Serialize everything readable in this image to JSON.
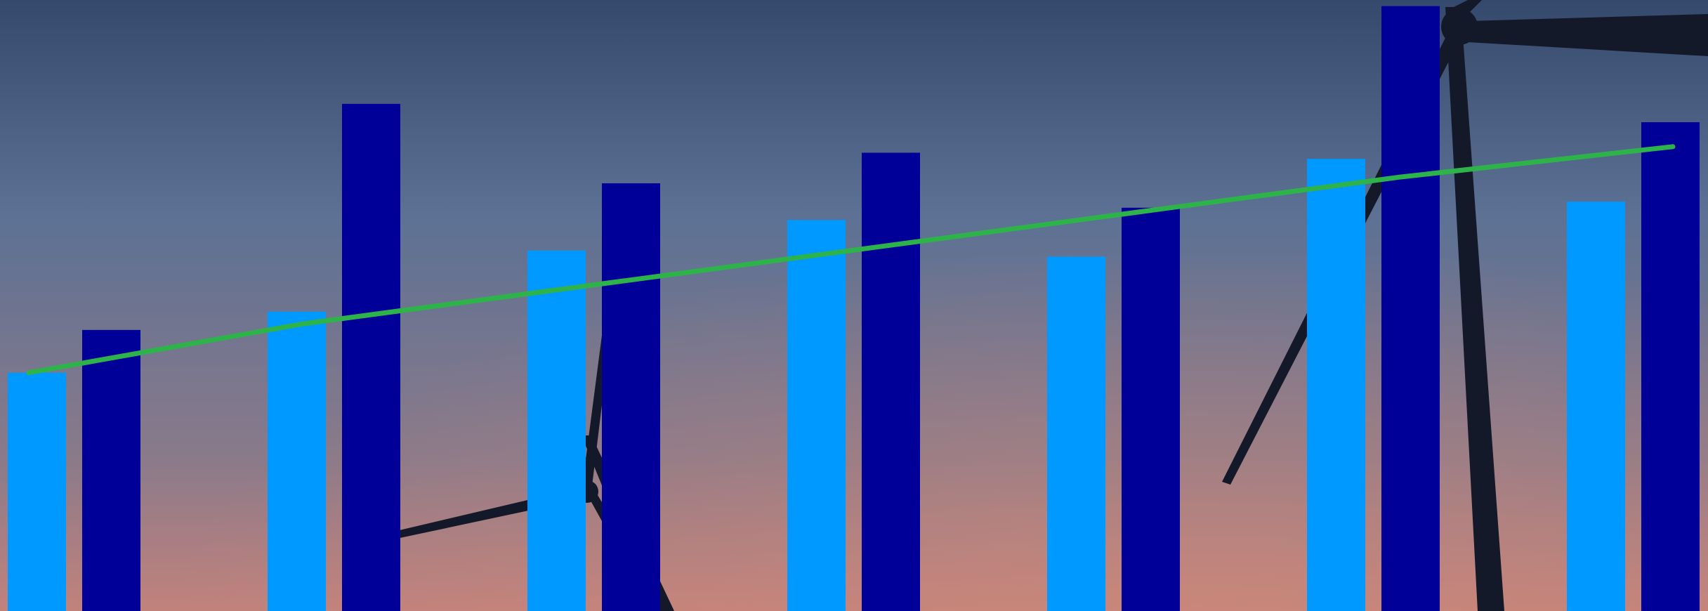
{
  "colors": {
    "sky_top": "#34496b",
    "sky_mid": "#5c7194",
    "sky_low": "#8a7a8a",
    "horizon": "#c2827c",
    "turbine": "#14192a",
    "series_light": "#0099ff",
    "series_dark": "#000099",
    "trend": "#2db34a"
  },
  "background": {
    "subject": "wind-turbine-silhouettes-at-dusk"
  },
  "chart_data": {
    "type": "bar",
    "title": "",
    "xlabel": "",
    "ylabel": "",
    "ylim": [
      0,
      100
    ],
    "grid": false,
    "legend": "none",
    "categories": [
      "",
      "",
      "",
      "",
      "",
      "",
      ""
    ],
    "series": [
      {
        "type": "bar",
        "color": "#0099ff",
        "values": [
          39,
          49,
          59,
          64,
          58,
          74,
          67
        ]
      },
      {
        "type": "bar",
        "color": "#000099",
        "values": [
          46,
          83,
          70,
          75,
          66,
          99,
          80
        ]
      },
      {
        "type": "line",
        "color": "#2db34a",
        "values": [
          39,
          47,
          53,
          59,
          65,
          71,
          76
        ]
      }
    ]
  }
}
